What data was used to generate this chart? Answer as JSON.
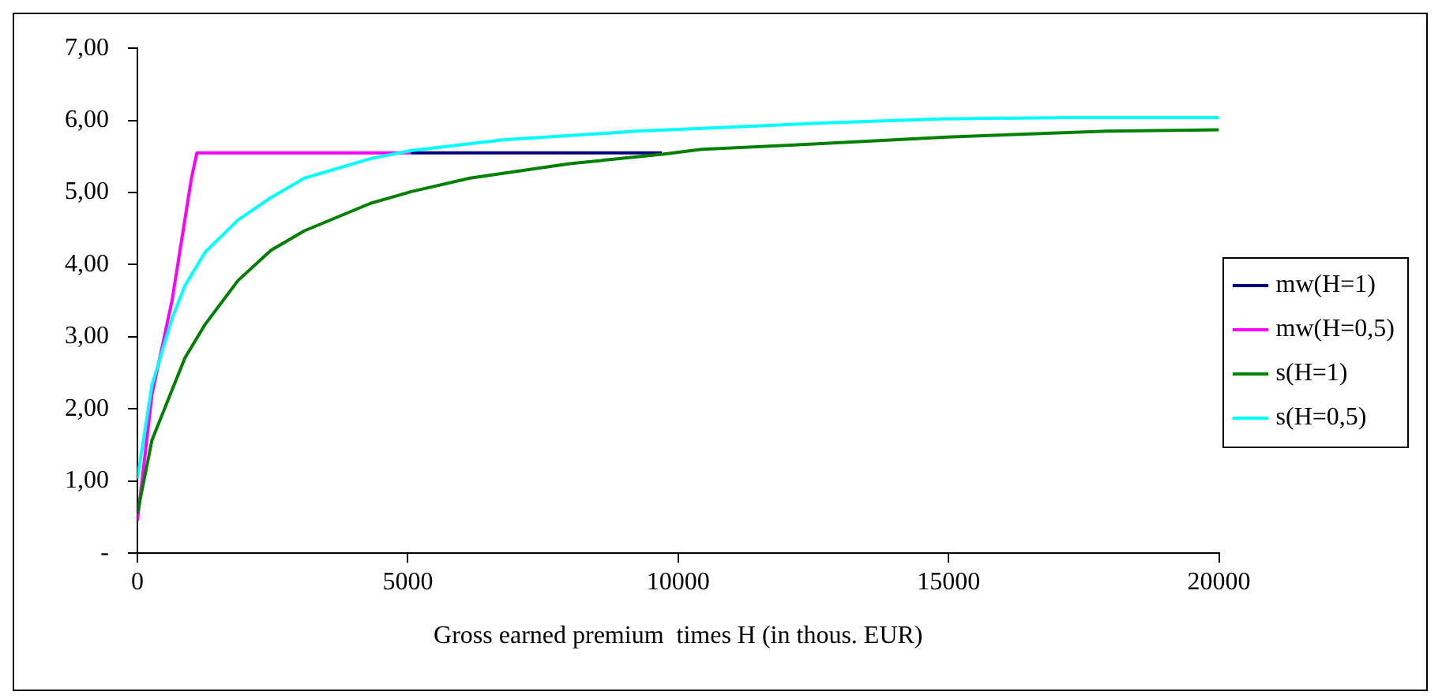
{
  "chart_data": {
    "type": "line",
    "xlabel": "Gross earned premium  times H (in thous. EUR)",
    "xlim": [
      0,
      20000
    ],
    "xticks": [
      0,
      5000,
      10000,
      15000,
      20000
    ],
    "ylim": [
      0,
      7
    ],
    "yticks": [
      {
        "value": 0,
        "label": "-"
      },
      {
        "value": 1,
        "label": "1,00"
      },
      {
        "value": 2,
        "label": "2,00"
      },
      {
        "value": 3,
        "label": "3,00"
      },
      {
        "value": 4,
        "label": "4,00"
      },
      {
        "value": 5,
        "label": "5,00"
      },
      {
        "value": 6,
        "label": "6,00"
      },
      {
        "value": 7,
        "label": "7,00"
      }
    ],
    "grid": false,
    "legend": "right",
    "marker": "none",
    "line_style": "solid",
    "series": [
      {
        "name": "mw(H=1)",
        "color": "#000080",
        "x": [
          5050,
          9700
        ],
        "values": [
          5.55,
          5.55
        ]
      },
      {
        "name": "mw(H=0,5)",
        "color": "#ff00ff",
        "x": [
          0,
          270,
          640,
          1000,
          1100,
          5050
        ],
        "values": [
          0.45,
          2.2,
          3.5,
          5.2,
          5.55,
          5.55
        ]
      },
      {
        "name": "s(H=1)",
        "color": "#008000",
        "x": [
          0,
          270,
          880,
          1250,
          1860,
          2470,
          3090,
          4310,
          5050,
          6150,
          7990,
          9710,
          10440,
          12160,
          14970,
          17920,
          20000
        ],
        "values": [
          0.55,
          1.57,
          2.71,
          3.17,
          3.78,
          4.2,
          4.47,
          4.85,
          5.01,
          5.2,
          5.4,
          5.53,
          5.6,
          5.66,
          5.77,
          5.85,
          5.87
        ]
      },
      {
        "name": "s(H=0,5)",
        "color": "#00ffff",
        "x": [
          0,
          270,
          640,
          880,
          1250,
          1860,
          2470,
          3090,
          4310,
          5050,
          6760,
          9220,
          10440,
          12520,
          14850,
          17180,
          20000
        ],
        "values": [
          1.03,
          2.33,
          3.25,
          3.71,
          4.17,
          4.62,
          4.93,
          5.2,
          5.47,
          5.58,
          5.73,
          5.85,
          5.89,
          5.96,
          6.02,
          6.04,
          6.04
        ]
      }
    ]
  }
}
